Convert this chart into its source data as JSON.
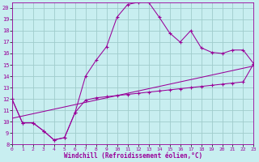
{
  "background_color": "#c8eef0",
  "grid_color": "#a0cccc",
  "line_color": "#990099",
  "xlim": [
    0,
    23
  ],
  "ylim": [
    8,
    20.5
  ],
  "xticks": [
    0,
    1,
    2,
    3,
    4,
    5,
    6,
    7,
    8,
    9,
    10,
    11,
    12,
    13,
    14,
    15,
    16,
    17,
    18,
    19,
    20,
    21,
    22,
    23
  ],
  "yticks": [
    8,
    9,
    10,
    11,
    12,
    13,
    14,
    15,
    16,
    17,
    18,
    19,
    20
  ],
  "xlabel": "Windchill (Refroidissement éolien,°C)",
  "line_bell_x": [
    0,
    1,
    2,
    3,
    4,
    5,
    6,
    7,
    8,
    9,
    10,
    11,
    12,
    13,
    14,
    15,
    16,
    17,
    18,
    19,
    20,
    21,
    22,
    23
  ],
  "line_bell_y": [
    12.0,
    9.9,
    9.9,
    9.2,
    8.4,
    8.6,
    10.8,
    14.0,
    15.4,
    16.6,
    19.2,
    20.3,
    20.5,
    20.5,
    19.2,
    17.8,
    17.0,
    18.0,
    16.5,
    16.1,
    16.0,
    16.3,
    16.3,
    15.1
  ],
  "line_flat_x": [
    0,
    1,
    2,
    3,
    4,
    5,
    6,
    7,
    8,
    9,
    10,
    11,
    12,
    13,
    14,
    15,
    16,
    17,
    18,
    19,
    20,
    21,
    22,
    23
  ],
  "line_flat_y": [
    12.0,
    9.9,
    9.9,
    9.2,
    8.4,
    8.6,
    10.8,
    11.9,
    12.1,
    12.2,
    12.3,
    12.4,
    12.5,
    12.6,
    12.7,
    12.8,
    12.9,
    13.0,
    13.1,
    13.2,
    13.3,
    13.4,
    13.5,
    15.1
  ],
  "line_diag_x": [
    0,
    1,
    2,
    3,
    4,
    5,
    6,
    7,
    8,
    9,
    10,
    11,
    12,
    13,
    14,
    15,
    16,
    17,
    18,
    19,
    20,
    21,
    22,
    23
  ],
  "line_diag_y": [
    10.3,
    10.5,
    10.7,
    10.9,
    11.1,
    11.3,
    11.5,
    11.7,
    11.9,
    12.1,
    12.3,
    12.5,
    12.7,
    12.9,
    13.1,
    13.3,
    13.5,
    13.7,
    13.9,
    14.1,
    14.3,
    14.5,
    14.7,
    14.9
  ]
}
